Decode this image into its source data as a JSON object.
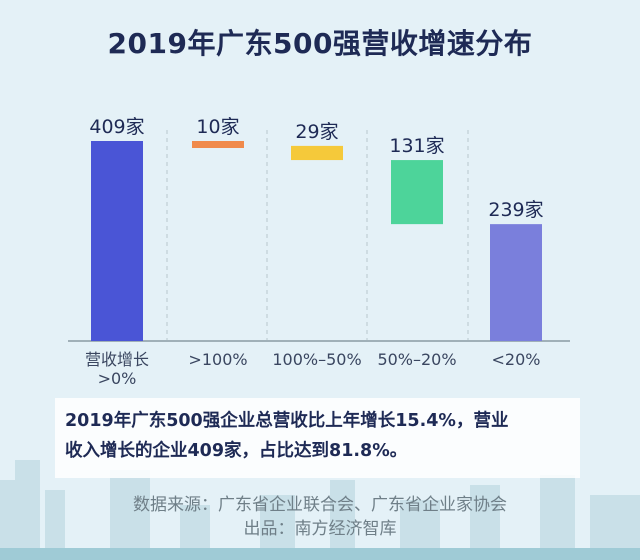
{
  "title": "2019年广东500强营收增速分布",
  "chart_data": {
    "type": "bar",
    "subtype": "waterfall",
    "categories": [
      "营收增长\n>0%",
      ">100%",
      "100%-50%",
      "50%-20%",
      "<20%"
    ],
    "category_lines": [
      [
        "营收增长",
        ">0%"
      ],
      [
        ">100%"
      ],
      [
        "100%–50%"
      ],
      [
        "50%–20%"
      ],
      [
        "<20%"
      ]
    ],
    "values": [
      409,
      10,
      29,
      131,
      239
    ],
    "data_labels": [
      "409家",
      "10家",
      "29家",
      "131家",
      "239家"
    ],
    "colors": [
      "#4a55d6",
      "#f08a4b",
      "#f5c93a",
      "#4dd49a",
      "#7a7fdc"
    ],
    "ylim": [
      0,
      409
    ],
    "grid": false,
    "separators": "dashed-vertical"
  },
  "note": {
    "line1": "2019年广东500强企业总营收比上年增长15.4%，营业",
    "line2": "收入增长的企业409家，占比达到81.8%。"
  },
  "footer": {
    "source": "数据来源：广东省企业联合会、广东省企业家协会",
    "producer": "出品：南方经济智库"
  }
}
